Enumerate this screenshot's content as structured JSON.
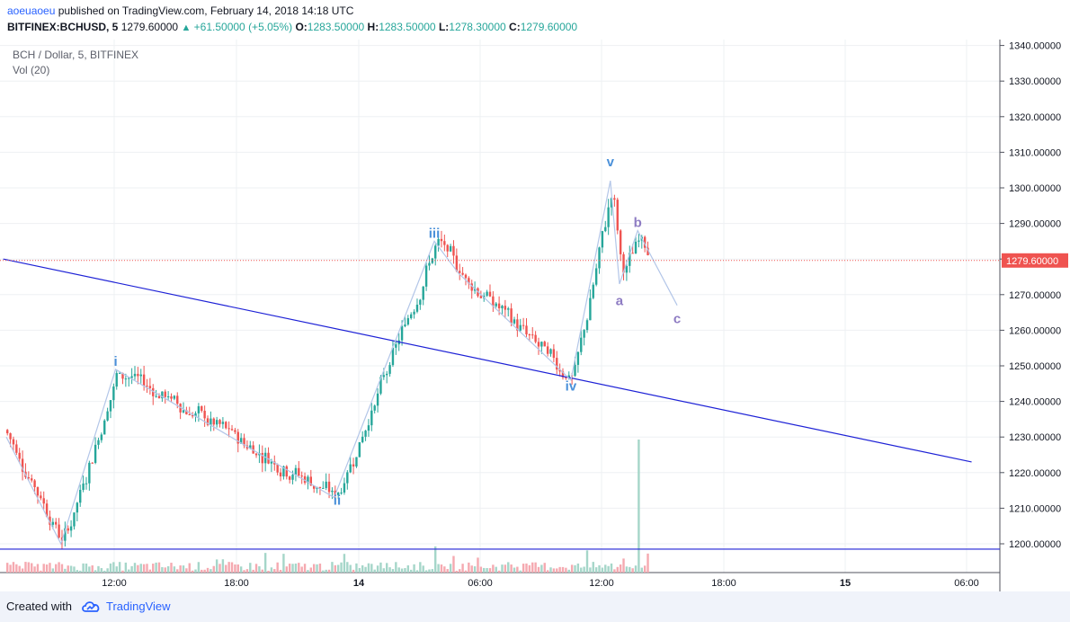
{
  "header": {
    "author": "aoeuaoeu",
    "published_text": "published on TradingView.com, February 14, 2018 14:18 UTC",
    "symbol": "BITFINEX:BCHUSD, 5",
    "price": "1279.60000",
    "change_arrow": "▲",
    "change": "+61.50000 (+5.05%)",
    "open_label": "O:",
    "open": "1283.50000",
    "high_label": "H:",
    "high": "1283.50000",
    "low_label": "L:",
    "low": "1278.30000",
    "close_label": "C:",
    "close": "1279.60000"
  },
  "legend": {
    "title": "BCH / Dollar, 5, BITFINEX",
    "volume": "Vol (20)"
  },
  "chart_data": {
    "type": "candlestick",
    "y_ticks": [
      "1340.00000",
      "1330.00000",
      "1320.00000",
      "1310.00000",
      "1300.00000",
      "1290.00000",
      "1280.00000",
      "1270.00000",
      "1260.00000",
      "1250.00000",
      "1240.00000",
      "1230.00000",
      "1220.00000",
      "1210.00000",
      "1200.00000"
    ],
    "ylim": [
      1193.5,
      1342
    ],
    "x_ticks": [
      "12:00",
      "18:00",
      "14",
      "06:00",
      "12:00",
      "18:00",
      "15",
      "06:00"
    ],
    "x_tick_bold": [
      false,
      false,
      true,
      false,
      false,
      false,
      true,
      false
    ],
    "last_price_label": "1279.60000",
    "last_price": 1279.6,
    "wave_labels": [
      {
        "text": "i",
        "color": "#4a90d9",
        "price": 1250,
        "bar": 36
      },
      {
        "text": "ii",
        "color": "#4a90d9",
        "price": 1211,
        "bar": 109
      },
      {
        "text": "iii",
        "color": "#4a90d9",
        "price": 1286,
        "bar": 141
      },
      {
        "text": "iv",
        "color": "#4a90d9",
        "price": 1243,
        "bar": 186
      },
      {
        "text": "v",
        "color": "#4a90d9",
        "price": 1306,
        "bar": 199
      },
      {
        "text": "a",
        "color": "#8e7cc3",
        "price": 1267,
        "bar": 202
      },
      {
        "text": "b",
        "color": "#8e7cc3",
        "price": 1289,
        "bar": 208
      },
      {
        "text": "c",
        "color": "#8e7cc3",
        "price": 1262,
        "bar": 221
      }
    ],
    "wave_path": [
      {
        "bar": 0,
        "price": 1230
      },
      {
        "bar": 18,
        "price": 1200
      },
      {
        "bar": 36,
        "price": 1249
      },
      {
        "bar": 108,
        "price": 1213
      },
      {
        "bar": 141,
        "price": 1285
      },
      {
        "bar": 149,
        "price": 1276
      },
      {
        "bar": 186,
        "price": 1246
      },
      {
        "bar": 199,
        "price": 1302
      },
      {
        "bar": 202,
        "price": 1273
      },
      {
        "bar": 208,
        "price": 1288
      },
      {
        "bar": 221,
        "price": 1267
      }
    ],
    "trend_line": [
      {
        "bar": -1,
        "price": 1280
      },
      {
        "bar": 318,
        "price": 1223
      }
    ],
    "support_line_price": 1198.5,
    "colors": {
      "up": "#26a69a",
      "down": "#ef5350",
      "vol_up": "#a5d6c9",
      "vol_down": "#f5a9b0",
      "wave": "#b3c6e8",
      "trend": "#1e22d6",
      "price_tag": "#ef5350"
    }
  },
  "footer": {
    "created_with": "Created with",
    "brand": "TradingView"
  }
}
